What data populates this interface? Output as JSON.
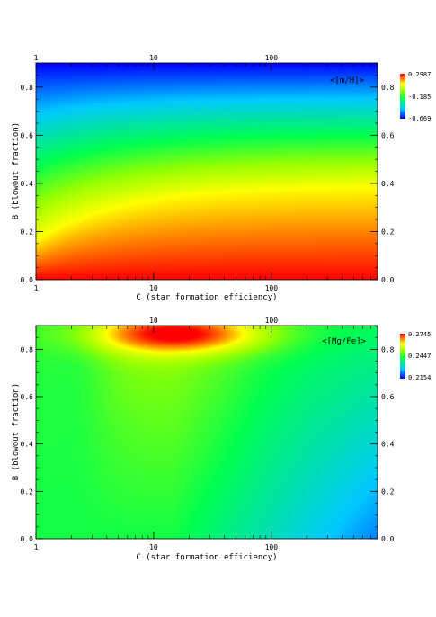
{
  "chart_data": [
    {
      "type": "heatmap",
      "xlabel": "C (star formation efficiency)",
      "ylabel": "B (blowout fraction)",
      "annotation": "<[m/H]>",
      "x_scale": "log",
      "xlim": [
        1,
        800
      ],
      "ylim": [
        0.0,
        0.9
      ],
      "x_ticks": [
        1,
        10,
        100
      ],
      "x_tick_labels": [
        "1",
        "10",
        "100"
      ],
      "x_top_tick_labels": [
        "1",
        "10",
        "100"
      ],
      "y_ticks": [
        0.0,
        0.2,
        0.4,
        0.6,
        0.8
      ],
      "y_tick_labels": [
        "0.0",
        "0.2",
        "0.4",
        "0.6",
        "0.8"
      ],
      "right_tick_labels": [
        "0.0",
        "0.2",
        "0.4",
        "0.6",
        "0.8"
      ],
      "colorbar": {
        "min": -0.669,
        "max": 0.2987,
        "tick_values": [
          -0.669,
          -0.185,
          0.2987
        ],
        "tick_labels": [
          "-0.669",
          "-0.185",
          "0.2987"
        ]
      },
      "colormap": "rainbow (blue-cyan-green-yellow-red)"
    },
    {
      "type": "heatmap",
      "xlabel": "C (star formation efficiency)",
      "ylabel": "B (blowout fraction)",
      "annotation": "<[Mg/Fe]>",
      "x_scale": "log",
      "xlim": [
        1,
        800
      ],
      "ylim": [
        0.0,
        0.9
      ],
      "x_ticks": [
        1,
        10,
        100
      ],
      "x_tick_labels": [
        "1",
        "10",
        "100"
      ],
      "x_top_tick_labels": [
        "",
        "10",
        "100"
      ],
      "y_ticks": [
        0.0,
        0.2,
        0.4,
        0.6,
        0.8
      ],
      "y_tick_labels": [
        "0.0",
        "0.2",
        "0.4",
        "0.6",
        "0.8"
      ],
      "right_tick_labels": [
        "0.0",
        "0.2",
        "0.4",
        "0.6",
        "0.8"
      ],
      "colorbar": {
        "min": 0.2154,
        "max": 0.2745,
        "tick_values": [
          0.2154,
          0.2447,
          0.2745
        ],
        "tick_labels": [
          "0.2154",
          "0.2447",
          "0.2745"
        ]
      },
      "colormap": "rainbow (blue-cyan-green-yellow-red)"
    }
  ]
}
